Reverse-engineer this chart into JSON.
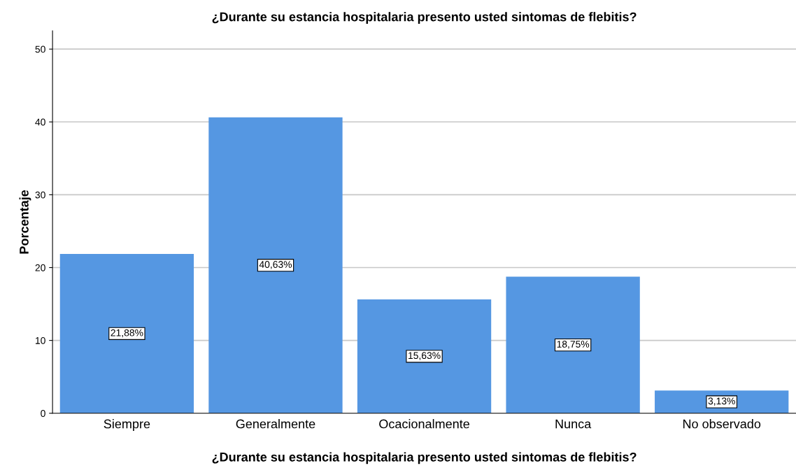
{
  "chart_data": {
    "type": "bar",
    "title": "¿Durante su estancia hospitalaria presento usted sintomas de flebitis?",
    "xlabel": "¿Durante su estancia hospitalaria presento usted sintomas de flebitis?",
    "ylabel": "Porcentaje",
    "categories": [
      "Siempre",
      "Generalmente",
      "Ocacionalmente",
      "Nunca",
      "No observado"
    ],
    "values": [
      21.88,
      40.63,
      15.63,
      18.75,
      3.13
    ],
    "value_labels": [
      "21,88%",
      "40,63%",
      "15,63%",
      "18,75%",
      "3,13%"
    ],
    "color": "#5597e2",
    "ylim": [
      0,
      52.5
    ],
    "yticks": [
      0,
      10,
      20,
      30,
      40,
      50
    ],
    "grid": "y"
  }
}
